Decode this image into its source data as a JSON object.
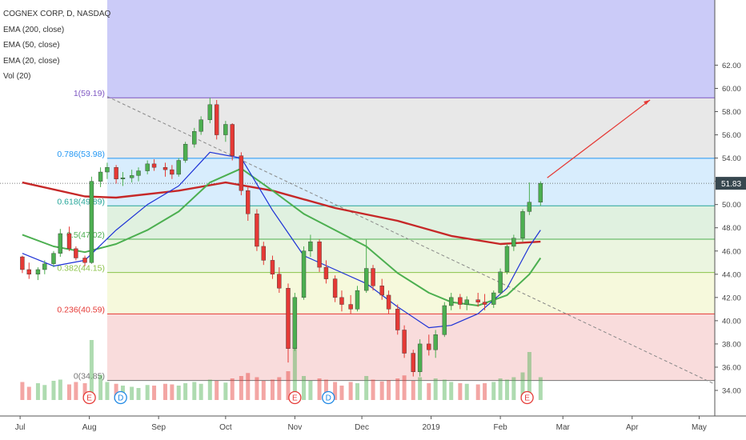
{
  "header": {
    "title": "COGNEX CORP, D, NASDAQ",
    "indicators": [
      "EMA (200, close)",
      "EMA (50, close)",
      "EMA (20, close)",
      "Vol (20)"
    ]
  },
  "colors": {
    "ema200": "#c62828",
    "ema50": "#4caf50",
    "ema20": "#1e33d6",
    "bull": "#4caf50",
    "bear": "#e53935",
    "trend_arrow": "#e53935",
    "price_badge": "#37474f"
  },
  "chart_data": {
    "type": "candlestick",
    "title": "COGNEX CORP, D, NASDAQ",
    "x_ticks": [
      "Jul",
      "Aug",
      "Sep",
      "Oct",
      "Nov",
      "Dec",
      "2019",
      "Feb",
      "Mar",
      "Apr",
      "May"
    ],
    "y_ticks": [
      "34.00",
      "36.00",
      "38.00",
      "40.00",
      "42.00",
      "44.00",
      "46.00",
      "48.00",
      "50.00",
      "52.00",
      "54.00",
      "56.00",
      "58.00",
      "60.00",
      "62.00"
    ],
    "ylim": [
      32,
      62.5
    ],
    "last_price": "51.83",
    "fib_levels": [
      {
        "label": "1(59.19)",
        "value": 59.19,
        "color": "#7e57c2"
      },
      {
        "label": "0.786(53.98)",
        "value": 53.98,
        "color": "#2196f3"
      },
      {
        "label": "0.618(49.89)",
        "value": 49.89,
        "color": "#26a69a"
      },
      {
        "label": "0.5(47.02)",
        "value": 47.02,
        "color": "#4caf50"
      },
      {
        "label": "0.382(44.15)",
        "value": 44.15,
        "color": "#8bc34a"
      },
      {
        "label": "0.236(40.59)",
        "value": 40.59,
        "color": "#e53935"
      },
      {
        "label": "0(34.85)",
        "value": 34.85,
        "color": "#757575"
      }
    ],
    "events": [
      {
        "label": "E",
        "date": "2018-08-01",
        "kind": "earnings"
      },
      {
        "label": "D",
        "date": "2018-08-15",
        "kind": "dividend"
      },
      {
        "label": "E",
        "date": "2018-11-01",
        "kind": "earnings"
      },
      {
        "label": "D",
        "date": "2018-11-16",
        "kind": "dividend"
      },
      {
        "label": "E",
        "date": "2019-02-13",
        "kind": "earnings"
      }
    ],
    "ohlc": [
      [
        "2018-07-02",
        45.5,
        45.6,
        44.1,
        44.4
      ],
      [
        "2018-07-05",
        44.4,
        45.0,
        43.6,
        44.0
      ],
      [
        "2018-07-09",
        44.0,
        44.6,
        43.5,
        44.4
      ],
      [
        "2018-07-12",
        44.4,
        45.2,
        44.0,
        44.9
      ],
      [
        "2018-07-16",
        44.9,
        46.0,
        44.6,
        45.8
      ],
      [
        "2018-07-19",
        45.8,
        47.9,
        45.5,
        47.5
      ],
      [
        "2018-07-23",
        47.5,
        48.1,
        46.0,
        46.2
      ],
      [
        "2018-07-26",
        46.2,
        46.4,
        45.2,
        45.4
      ],
      [
        "2018-07-30",
        45.4,
        45.6,
        44.7,
        45.0
      ],
      [
        "2018-08-02",
        45.0,
        52.4,
        44.9,
        52.0
      ],
      [
        "2018-08-06",
        52.0,
        53.2,
        51.5,
        52.8
      ],
      [
        "2018-08-09",
        52.8,
        53.6,
        52.2,
        53.2
      ],
      [
        "2018-08-13",
        53.2,
        53.4,
        51.8,
        52.2
      ],
      [
        "2018-08-16",
        52.2,
        52.8,
        51.6,
        52.3
      ],
      [
        "2018-08-20",
        52.3,
        53.0,
        51.9,
        52.5
      ],
      [
        "2018-08-23",
        52.5,
        53.2,
        52.0,
        52.9
      ],
      [
        "2018-08-27",
        52.9,
        53.8,
        52.6,
        53.5
      ],
      [
        "2018-08-30",
        53.5,
        53.9,
        52.9,
        53.2
      ],
      [
        "2018-09-04",
        53.2,
        53.6,
        52.4,
        53.0
      ],
      [
        "2018-09-07",
        53.0,
        53.4,
        52.2,
        52.6
      ],
      [
        "2018-09-10",
        52.6,
        54.0,
        52.4,
        53.8
      ],
      [
        "2018-09-13",
        53.8,
        55.4,
        53.6,
        55.2
      ],
      [
        "2018-09-17",
        55.2,
        56.6,
        54.9,
        56.3
      ],
      [
        "2018-09-20",
        56.3,
        57.6,
        56.0,
        57.3
      ],
      [
        "2018-09-24",
        57.3,
        59.2,
        57.0,
        58.6
      ],
      [
        "2018-09-27",
        58.6,
        59.0,
        55.6,
        56.0
      ],
      [
        "2018-10-01",
        56.0,
        57.2,
        55.4,
        56.9
      ],
      [
        "2018-10-04",
        56.9,
        57.0,
        53.8,
        54.2
      ],
      [
        "2018-10-08",
        54.2,
        54.5,
        50.8,
        51.2
      ],
      [
        "2018-10-11",
        51.2,
        51.6,
        48.6,
        49.2
      ],
      [
        "2018-10-15",
        49.2,
        49.6,
        46.0,
        46.4
      ],
      [
        "2018-10-18",
        46.4,
        46.8,
        44.8,
        45.2
      ],
      [
        "2018-10-22",
        45.2,
        45.6,
        43.6,
        44.0
      ],
      [
        "2018-10-25",
        44.0,
        44.6,
        42.4,
        42.8
      ],
      [
        "2018-10-29",
        42.8,
        43.2,
        36.4,
        37.6
      ],
      [
        "2018-11-01",
        37.6,
        42.4,
        37.4,
        42.0
      ],
      [
        "2018-11-05",
        42.0,
        46.4,
        41.8,
        46.0
      ],
      [
        "2018-11-08",
        46.0,
        47.4,
        45.5,
        46.8
      ],
      [
        "2018-11-12",
        46.8,
        47.0,
        44.2,
        44.6
      ],
      [
        "2018-11-15",
        44.6,
        45.2,
        43.2,
        43.6
      ],
      [
        "2018-11-19",
        43.6,
        43.9,
        41.6,
        42.0
      ],
      [
        "2018-11-22",
        42.0,
        42.6,
        40.8,
        41.4
      ],
      [
        "2018-11-26",
        41.4,
        42.2,
        40.6,
        41.0
      ],
      [
        "2018-11-29",
        41.0,
        43.0,
        40.8,
        42.6
      ],
      [
        "2018-12-03",
        42.6,
        47.0,
        42.4,
        44.5
      ],
      [
        "2018-12-06",
        44.5,
        44.8,
        42.6,
        43.0
      ],
      [
        "2018-12-10",
        43.0,
        43.6,
        41.8,
        42.2
      ],
      [
        "2018-12-13",
        42.2,
        42.6,
        40.6,
        41.0
      ],
      [
        "2018-12-17",
        41.0,
        41.4,
        38.8,
        39.2
      ],
      [
        "2018-12-20",
        39.2,
        39.6,
        36.8,
        37.2
      ],
      [
        "2018-12-24",
        37.2,
        37.5,
        35.2,
        35.6
      ],
      [
        "2018-12-27",
        35.6,
        38.4,
        35.2,
        38.0
      ],
      [
        "2018-12-31",
        38.0,
        38.8,
        37.0,
        37.5
      ],
      [
        "2019-01-03",
        37.5,
        39.2,
        36.8,
        38.8
      ],
      [
        "2019-01-07",
        38.8,
        41.6,
        38.6,
        41.3
      ],
      [
        "2019-01-10",
        41.3,
        42.4,
        40.9,
        42.0
      ],
      [
        "2019-01-14",
        42.0,
        42.3,
        41.0,
        41.4
      ],
      [
        "2019-01-17",
        41.4,
        42.1,
        40.9,
        41.8
      ],
      [
        "2019-01-22",
        41.8,
        42.4,
        41.2,
        41.6
      ],
      [
        "2019-01-25",
        41.6,
        42.3,
        40.9,
        41.4
      ],
      [
        "2019-01-29",
        41.4,
        42.6,
        41.1,
        42.4
      ],
      [
        "2019-02-01",
        42.4,
        44.5,
        42.2,
        44.2
      ],
      [
        "2019-02-04",
        44.2,
        46.6,
        44.0,
        46.4
      ],
      [
        "2019-02-07",
        46.4,
        47.4,
        46.0,
        47.1
      ],
      [
        "2019-02-11",
        47.1,
        49.6,
        46.8,
        49.4
      ],
      [
        "2019-02-14",
        49.4,
        51.9,
        49.1,
        50.2
      ],
      [
        "2019-02-19",
        50.2,
        52.0,
        49.9,
        51.83
      ]
    ],
    "ema20": [
      [
        "2018-07-02",
        45.8
      ],
      [
        "2018-07-16",
        44.7
      ],
      [
        "2018-07-30",
        45.2
      ],
      [
        "2018-08-13",
        47.8
      ],
      [
        "2018-08-27",
        50.0
      ],
      [
        "2018-09-10",
        51.6
      ],
      [
        "2018-09-24",
        54.5
      ],
      [
        "2018-10-08",
        54.0
      ],
      [
        "2018-10-22",
        49.5
      ],
      [
        "2018-11-05",
        45.6
      ],
      [
        "2018-11-19",
        44.4
      ],
      [
        "2018-12-03",
        43.2
      ],
      [
        "2018-12-17",
        41.2
      ],
      [
        "2018-12-31",
        39.4
      ],
      [
        "2019-01-10",
        39.6
      ],
      [
        "2019-01-22",
        40.6
      ],
      [
        "2019-02-04",
        42.8
      ],
      [
        "2019-02-14",
        46.4
      ],
      [
        "2019-02-19",
        47.8
      ]
    ],
    "ema50": [
      [
        "2018-07-02",
        47.4
      ],
      [
        "2018-07-16",
        46.4
      ],
      [
        "2018-07-30",
        45.9
      ],
      [
        "2018-08-13",
        46.6
      ],
      [
        "2018-08-27",
        47.8
      ],
      [
        "2018-09-10",
        49.4
      ],
      [
        "2018-09-24",
        51.9
      ],
      [
        "2018-10-08",
        53.1
      ],
      [
        "2018-10-22",
        51.2
      ],
      [
        "2018-11-05",
        49.2
      ],
      [
        "2018-11-19",
        47.8
      ],
      [
        "2018-12-03",
        46.4
      ],
      [
        "2018-12-17",
        44.1
      ],
      [
        "2018-12-31",
        42.4
      ],
      [
        "2019-01-10",
        41.6
      ],
      [
        "2019-01-22",
        41.3
      ],
      [
        "2019-02-04",
        42.2
      ],
      [
        "2019-02-14",
        44.0
      ],
      [
        "2019-02-19",
        45.4
      ]
    ],
    "ema200": [
      [
        "2018-07-02",
        51.9
      ],
      [
        "2018-07-30",
        50.7
      ],
      [
        "2018-08-13",
        50.6
      ],
      [
        "2018-09-10",
        51.2
      ],
      [
        "2018-10-01",
        51.9
      ],
      [
        "2018-10-22",
        51.2
      ],
      [
        "2018-11-19",
        49.7
      ],
      [
        "2018-12-17",
        48.6
      ],
      [
        "2019-01-10",
        47.3
      ],
      [
        "2019-02-01",
        46.6
      ],
      [
        "2019-02-19",
        46.8
      ]
    ],
    "volume": [
      [
        "2018-07-02",
        30
      ],
      [
        "2018-07-05",
        22
      ],
      [
        "2018-07-09",
        28
      ],
      [
        "2018-07-12",
        25
      ],
      [
        "2018-07-16",
        32
      ],
      [
        "2018-07-19",
        34
      ],
      [
        "2018-07-23",
        26
      ],
      [
        "2018-07-26",
        30
      ],
      [
        "2018-07-30",
        28
      ],
      [
        "2018-08-02",
        100
      ],
      [
        "2018-08-06",
        42
      ],
      [
        "2018-08-09",
        30
      ],
      [
        "2018-08-13",
        27
      ],
      [
        "2018-08-16",
        24
      ],
      [
        "2018-08-20",
        22
      ],
      [
        "2018-08-23",
        20
      ],
      [
        "2018-08-27",
        25
      ],
      [
        "2018-08-30",
        24
      ],
      [
        "2018-09-04",
        27
      ],
      [
        "2018-09-07",
        26
      ],
      [
        "2018-09-10",
        24
      ],
      [
        "2018-09-13",
        28
      ],
      [
        "2018-09-17",
        30
      ],
      [
        "2018-09-20",
        27
      ],
      [
        "2018-09-24",
        34
      ],
      [
        "2018-09-27",
        32
      ],
      [
        "2018-10-01",
        29
      ],
      [
        "2018-10-04",
        36
      ],
      [
        "2018-10-08",
        40
      ],
      [
        "2018-10-11",
        45
      ],
      [
        "2018-10-15",
        38
      ],
      [
        "2018-10-18",
        32
      ],
      [
        "2018-10-22",
        34
      ],
      [
        "2018-10-25",
        38
      ],
      [
        "2018-10-29",
        48
      ],
      [
        "2018-11-01",
        88
      ],
      [
        "2018-11-05",
        40
      ],
      [
        "2018-11-08",
        32
      ],
      [
        "2018-11-12",
        36
      ],
      [
        "2018-11-15",
        34
      ],
      [
        "2018-11-19",
        30
      ],
      [
        "2018-11-22",
        24
      ],
      [
        "2018-11-26",
        30
      ],
      [
        "2018-11-29",
        28
      ],
      [
        "2018-12-03",
        40
      ],
      [
        "2018-12-06",
        34
      ],
      [
        "2018-12-10",
        31
      ],
      [
        "2018-12-13",
        33
      ],
      [
        "2018-12-17",
        36
      ],
      [
        "2018-12-20",
        41
      ],
      [
        "2018-12-24",
        32
      ],
      [
        "2018-12-27",
        38
      ],
      [
        "2018-12-31",
        28
      ],
      [
        "2019-01-03",
        36
      ],
      [
        "2019-01-07",
        34
      ],
      [
        "2019-01-10",
        30
      ],
      [
        "2019-01-14",
        28
      ],
      [
        "2019-01-17",
        27
      ],
      [
        "2019-01-22",
        26
      ],
      [
        "2019-01-25",
        28
      ],
      [
        "2019-01-29",
        30
      ],
      [
        "2019-02-01",
        36
      ],
      [
        "2019-02-04",
        34
      ],
      [
        "2019-02-07",
        38
      ],
      [
        "2019-02-11",
        46
      ],
      [
        "2019-02-14",
        80
      ],
      [
        "2019-02-19",
        38
      ]
    ]
  }
}
